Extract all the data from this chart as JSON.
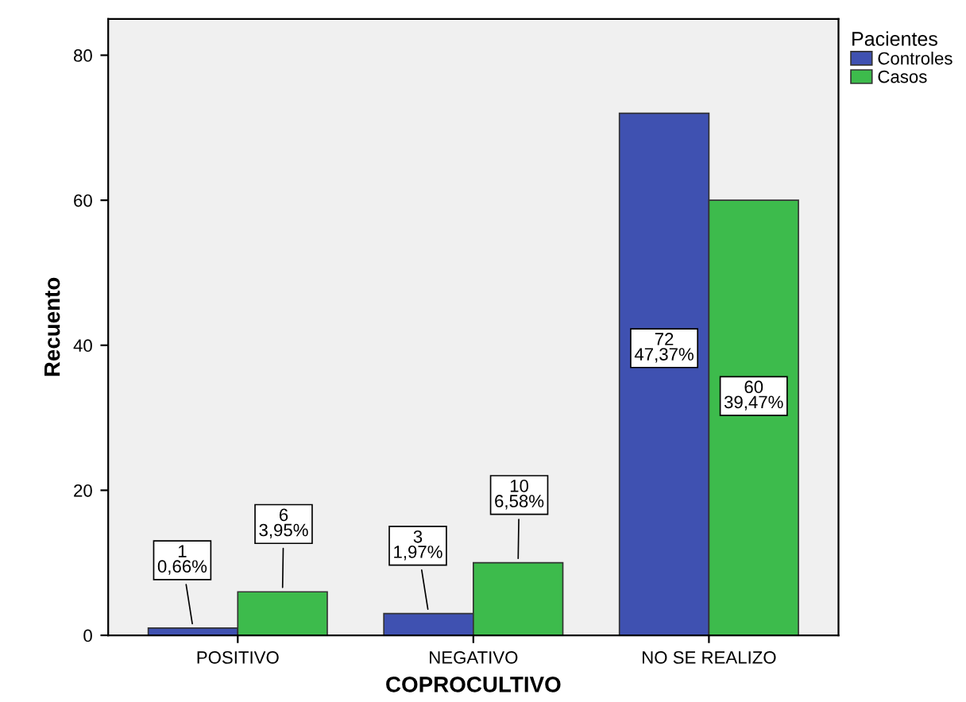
{
  "chart_data": {
    "type": "bar",
    "xlabel": "COPROCULTIVO",
    "ylabel": "Recuento",
    "legend_title": "Pacientes",
    "categories": [
      "POSITIVO",
      "NEGATIVO",
      "NO SE REALIZO"
    ],
    "series": [
      {
        "name": "Controles",
        "color": "#3f51b1",
        "values": [
          1,
          3,
          72
        ],
        "value_labels": [
          "1\n0,66%",
          "3\n1,97%",
          "72\n47,37%"
        ]
      },
      {
        "name": "Casos",
        "color": "#3dbb4c",
        "values": [
          6,
          10,
          60
        ],
        "value_labels": [
          "6\n3,95%",
          "10\n6,58%",
          "60\n39,47%"
        ]
      }
    ],
    "ylim": [
      0,
      85
    ],
    "yticks": [
      0,
      20,
      40,
      60,
      80
    ],
    "grid": false,
    "legend": "top right"
  }
}
